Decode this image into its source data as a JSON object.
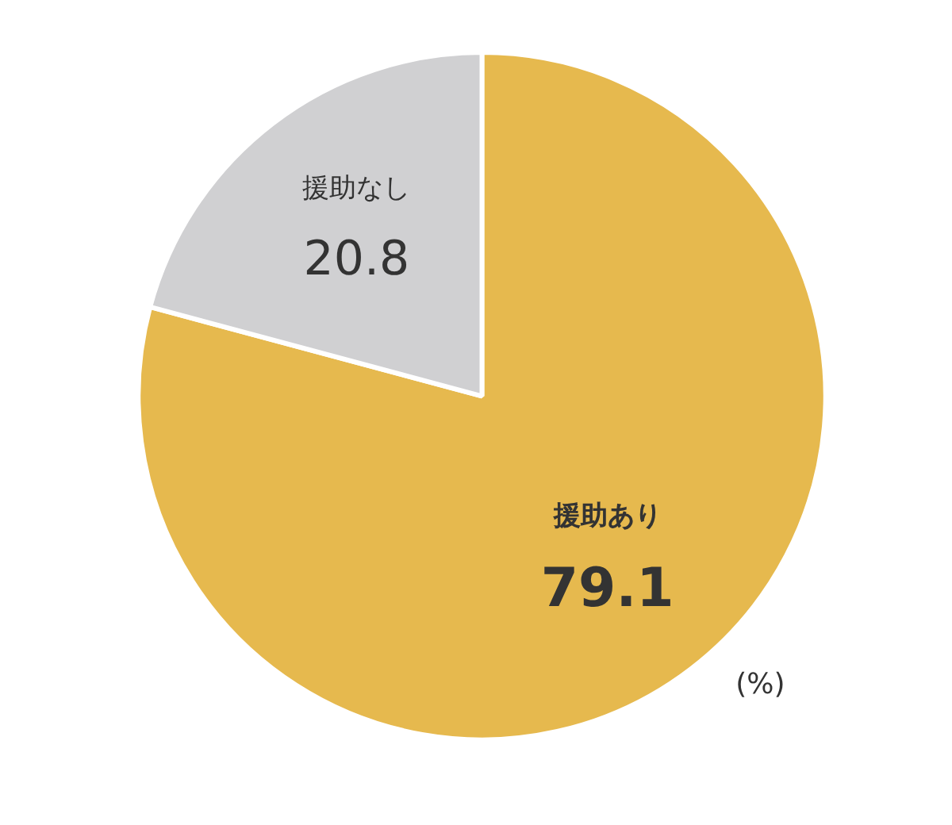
{
  "chart_data": {
    "type": "pie",
    "categories": [
      "援助あり",
      "援助なし"
    ],
    "values": [
      79.1,
      20.8
    ],
    "colors": [
      "#e6b94e",
      "#d0d0d2"
    ],
    "data_labels": true,
    "annotations": [
      "(%)"
    ]
  }
}
